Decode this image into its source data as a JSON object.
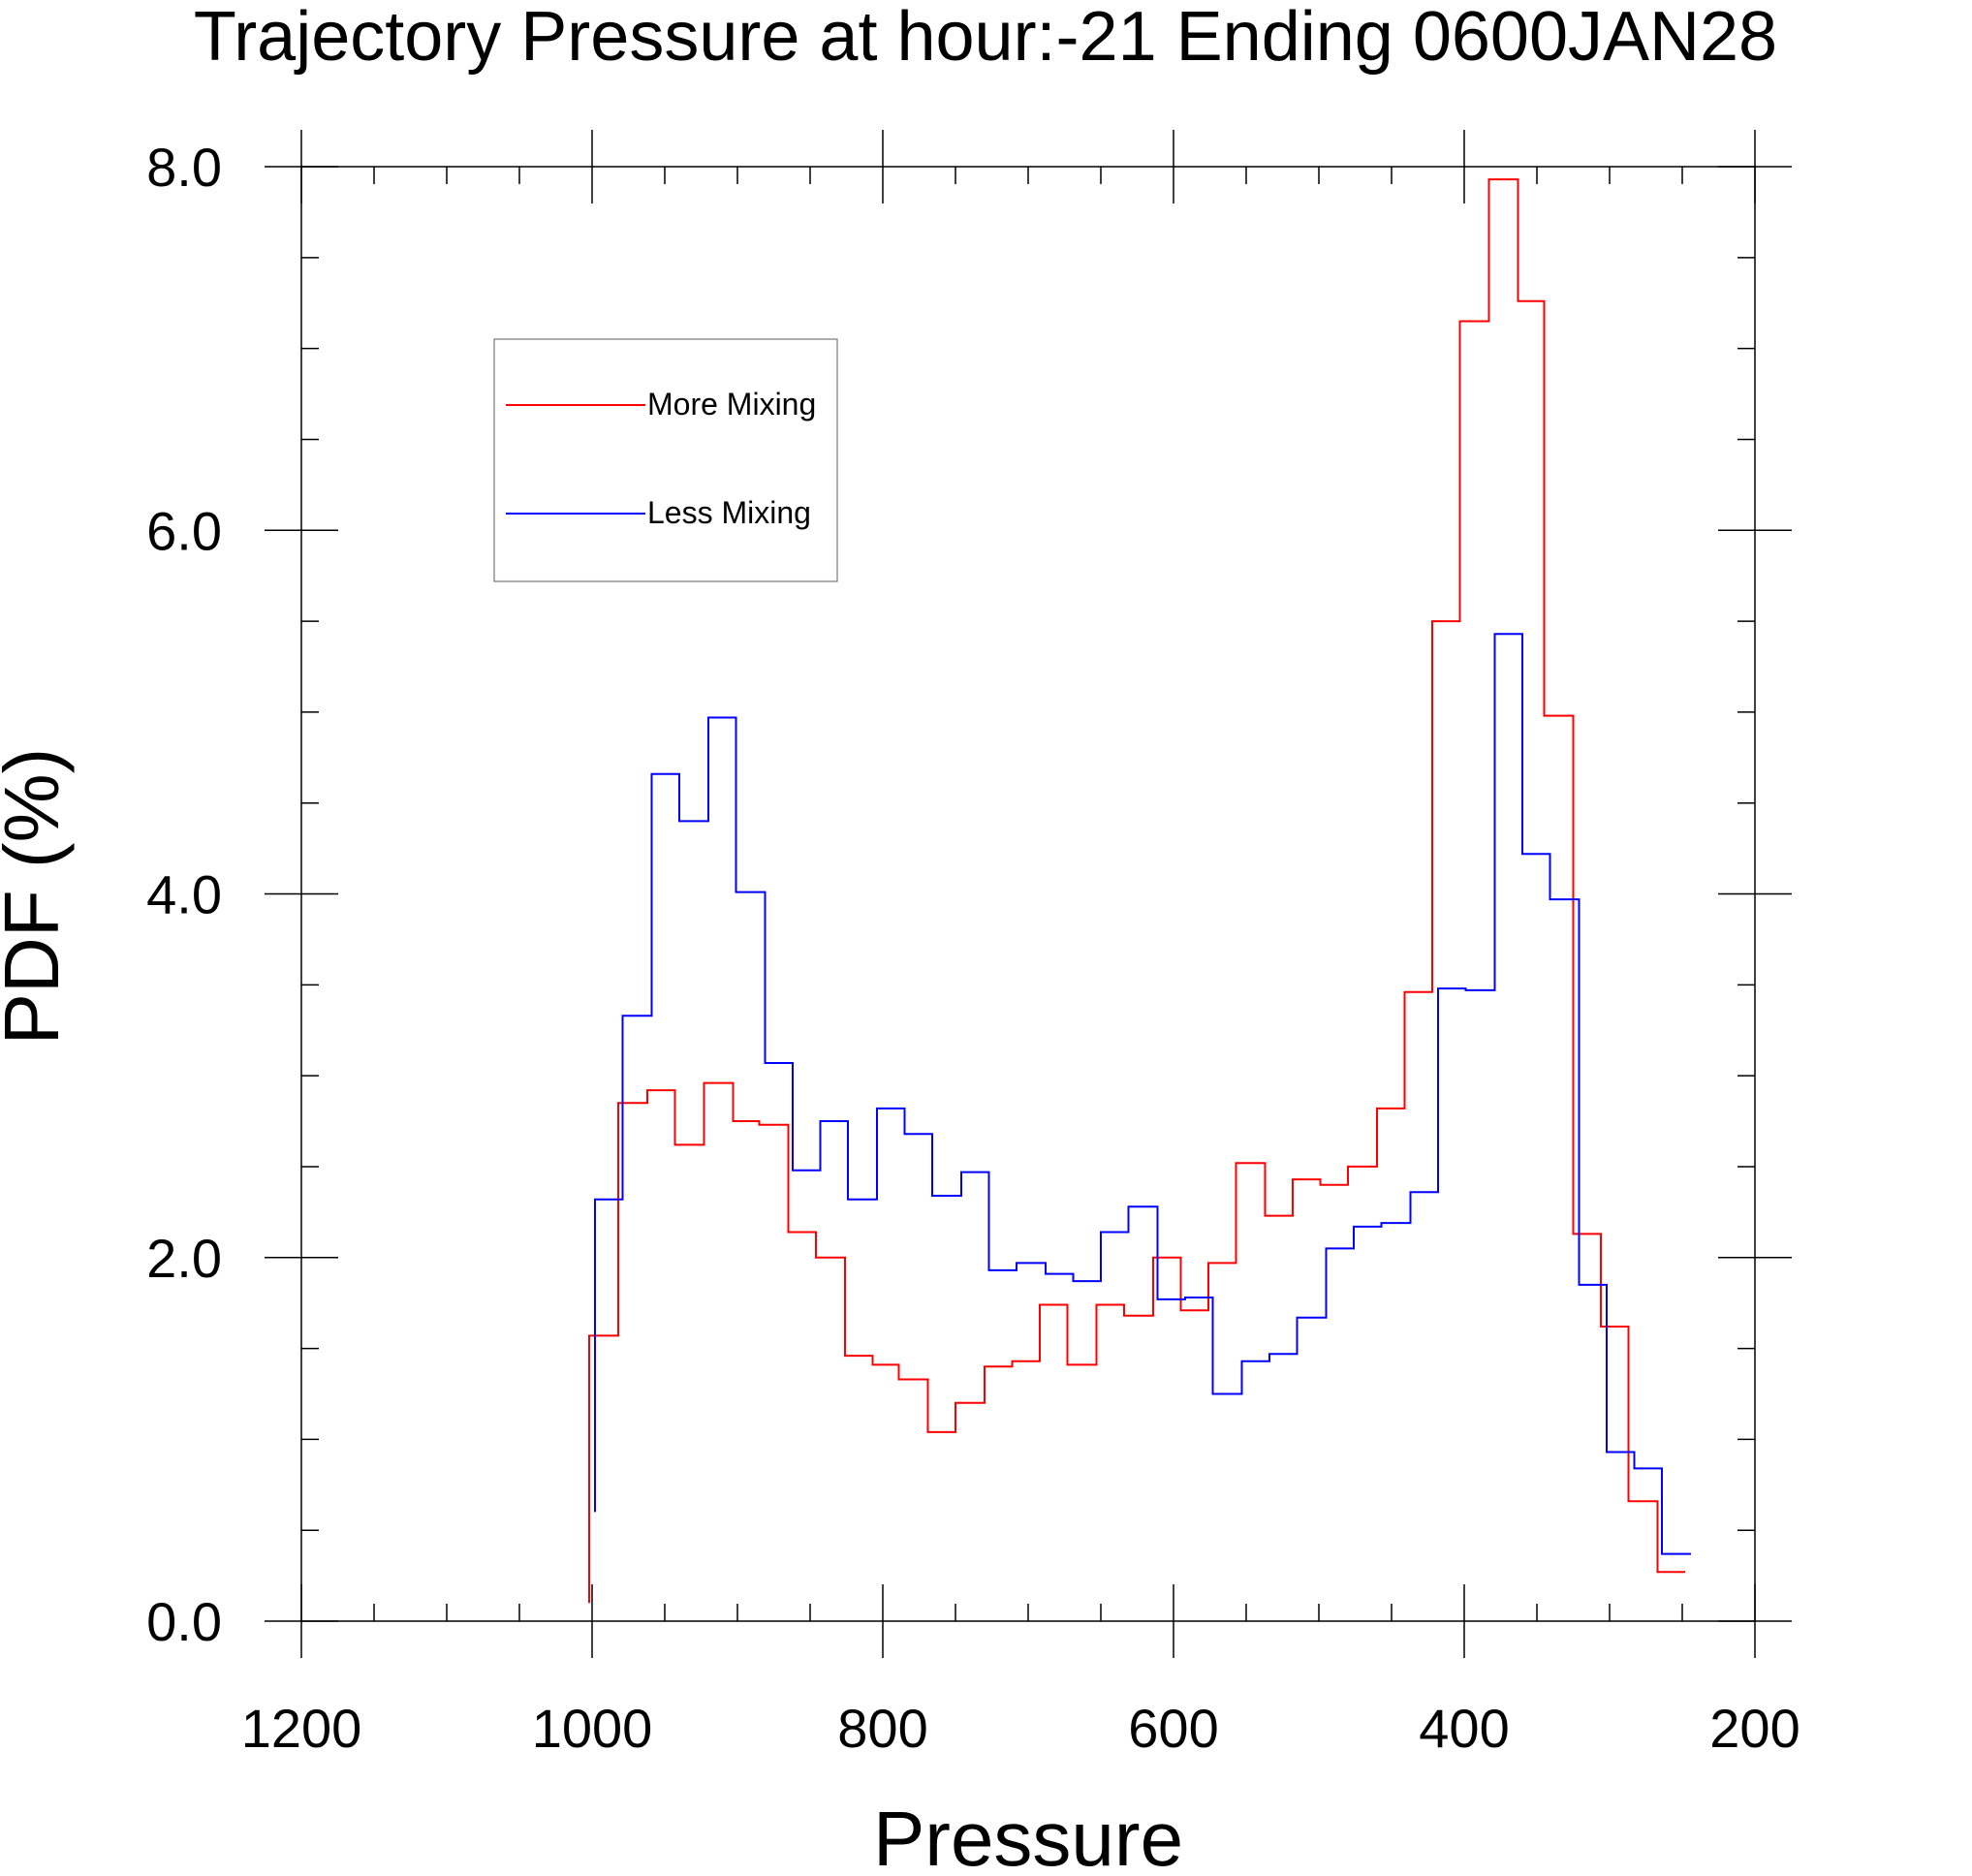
{
  "chart_data": {
    "type": "line",
    "step": true,
    "title": "Trajectory Pressure at hour:-21 Ending 0600JAN28",
    "xlabel": "Pressure",
    "ylabel": "PDF (%)",
    "xlim": [
      1200,
      200
    ],
    "ylim": [
      0,
      8
    ],
    "x_reversed": true,
    "x_major_ticks": [
      1200,
      1000,
      800,
      600,
      400,
      200
    ],
    "x_minor_step": 50,
    "y_major_ticks": [
      0,
      2,
      4,
      6,
      8
    ],
    "y_tick_labels": [
      "0.0",
      "2.0",
      "4.0",
      "6.0",
      "8.0"
    ],
    "y_minor_step": 0.5,
    "grid": false,
    "legend_position": "top-left",
    "series": [
      {
        "name": "More Mixing",
        "color": "#ff0000",
        "points": [
          [
            1002,
            0.1
          ],
          [
            1002,
            1.57
          ],
          [
            982,
            1.57
          ],
          [
            982,
            2.85
          ],
          [
            962,
            2.85
          ],
          [
            962,
            2.92
          ],
          [
            943,
            2.92
          ],
          [
            943,
            2.62
          ],
          [
            923,
            2.62
          ],
          [
            923,
            2.96
          ],
          [
            903,
            2.96
          ],
          [
            903,
            2.75
          ],
          [
            885,
            2.75
          ],
          [
            885,
            2.73
          ],
          [
            865,
            2.73
          ],
          [
            865,
            2.14
          ],
          [
            846,
            2.14
          ],
          [
            846,
            2.0
          ],
          [
            826,
            2.0
          ],
          [
            826,
            1.46
          ],
          [
            807,
            1.46
          ],
          [
            807,
            1.41
          ],
          [
            789,
            1.41
          ],
          [
            789,
            1.33
          ],
          [
            769,
            1.33
          ],
          [
            769,
            1.04
          ],
          [
            750,
            1.04
          ],
          [
            750,
            1.2
          ],
          [
            730,
            1.2
          ],
          [
            730,
            1.4
          ],
          [
            711,
            1.4
          ],
          [
            711,
            1.43
          ],
          [
            692,
            1.43
          ],
          [
            692,
            1.74
          ],
          [
            673,
            1.74
          ],
          [
            673,
            1.41
          ],
          [
            653,
            1.41
          ],
          [
            653,
            1.74
          ],
          [
            634,
            1.74
          ],
          [
            634,
            1.68
          ],
          [
            614,
            1.68
          ],
          [
            614,
            2.0
          ],
          [
            595,
            2.0
          ],
          [
            595,
            1.71
          ],
          [
            576,
            1.71
          ],
          [
            576,
            1.97
          ],
          [
            557,
            1.97
          ],
          [
            557,
            2.52
          ],
          [
            537,
            2.52
          ],
          [
            537,
            2.23
          ],
          [
            518,
            2.23
          ],
          [
            518,
            2.43
          ],
          [
            499,
            2.43
          ],
          [
            499,
            2.4
          ],
          [
            480,
            2.4
          ],
          [
            480,
            2.5
          ],
          [
            460,
            2.5
          ],
          [
            460,
            2.82
          ],
          [
            441,
            2.82
          ],
          [
            441,
            3.46
          ],
          [
            422,
            3.46
          ],
          [
            422,
            5.5
          ],
          [
            403,
            5.5
          ],
          [
            403,
            7.15
          ],
          [
            383,
            7.15
          ],
          [
            383,
            7.93
          ],
          [
            363,
            7.93
          ],
          [
            363,
            7.26
          ],
          [
            345,
            7.26
          ],
          [
            345,
            4.98
          ],
          [
            325,
            4.98
          ],
          [
            325,
            2.13
          ],
          [
            306,
            2.13
          ],
          [
            306,
            1.62
          ],
          [
            287,
            1.62
          ],
          [
            287,
            0.66
          ],
          [
            267,
            0.66
          ],
          [
            267,
            0.27
          ],
          [
            248,
            0.27
          ]
        ]
      },
      {
        "name": "Less Mixing",
        "color": "#0000ff",
        "points": [
          [
            998,
            0.6
          ],
          [
            998,
            2.32
          ],
          [
            979,
            2.32
          ],
          [
            979,
            3.33
          ],
          [
            959,
            3.33
          ],
          [
            959,
            4.66
          ],
          [
            940,
            4.66
          ],
          [
            940,
            4.4
          ],
          [
            920,
            4.4
          ],
          [
            920,
            4.97
          ],
          [
            901,
            4.97
          ],
          [
            901,
            4.01
          ],
          [
            881,
            4.01
          ],
          [
            881,
            3.07
          ],
          [
            862,
            3.07
          ],
          [
            862,
            2.48
          ],
          [
            843,
            2.48
          ],
          [
            843,
            2.75
          ],
          [
            824,
            2.75
          ],
          [
            824,
            2.32
          ],
          [
            804,
            2.32
          ],
          [
            804,
            2.82
          ],
          [
            785,
            2.82
          ],
          [
            785,
            2.68
          ],
          [
            766,
            2.68
          ],
          [
            766,
            2.34
          ],
          [
            746,
            2.34
          ],
          [
            746,
            2.47
          ],
          [
            727,
            2.47
          ],
          [
            727,
            1.93
          ],
          [
            708,
            1.93
          ],
          [
            708,
            1.97
          ],
          [
            688,
            1.97
          ],
          [
            688,
            1.91
          ],
          [
            669,
            1.91
          ],
          [
            669,
            1.87
          ],
          [
            650,
            1.87
          ],
          [
            650,
            2.14
          ],
          [
            631,
            2.14
          ],
          [
            631,
            2.28
          ],
          [
            611,
            2.28
          ],
          [
            611,
            1.77
          ],
          [
            592,
            1.77
          ],
          [
            592,
            1.78
          ],
          [
            573,
            1.78
          ],
          [
            573,
            1.25
          ],
          [
            553,
            1.25
          ],
          [
            553,
            1.43
          ],
          [
            534,
            1.43
          ],
          [
            534,
            1.47
          ],
          [
            515,
            1.47
          ],
          [
            515,
            1.67
          ],
          [
            495,
            1.67
          ],
          [
            495,
            2.05
          ],
          [
            476,
            2.05
          ],
          [
            476,
            2.17
          ],
          [
            457,
            2.17
          ],
          [
            457,
            2.19
          ],
          [
            437,
            2.19
          ],
          [
            437,
            2.36
          ],
          [
            418,
            2.36
          ],
          [
            418,
            3.48
          ],
          [
            399,
            3.48
          ],
          [
            399,
            3.47
          ],
          [
            379,
            3.47
          ],
          [
            379,
            5.43
          ],
          [
            360,
            5.43
          ],
          [
            360,
            4.22
          ],
          [
            341,
            4.22
          ],
          [
            341,
            3.97
          ],
          [
            321,
            3.97
          ],
          [
            321,
            1.85
          ],
          [
            302,
            1.85
          ],
          [
            302,
            0.93
          ],
          [
            283,
            0.93
          ],
          [
            283,
            0.84
          ],
          [
            264,
            0.84
          ],
          [
            264,
            0.37
          ],
          [
            244,
            0.37
          ]
        ]
      }
    ]
  }
}
